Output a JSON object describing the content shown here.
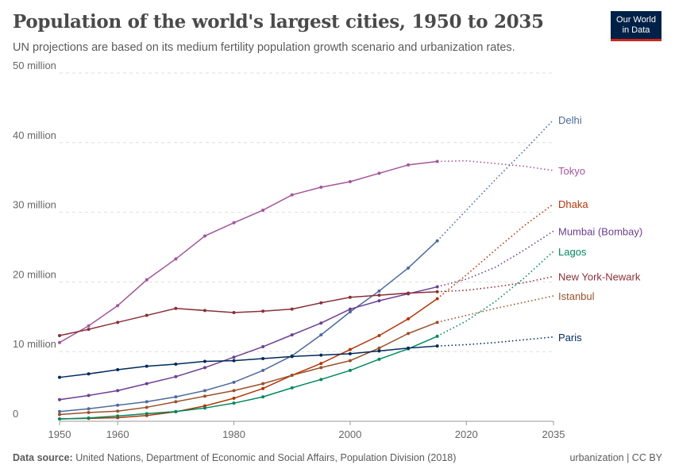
{
  "title": "Population of the world's largest cities, 1950 to 2035",
  "subtitle": "UN projections are based on its medium fertility population growth scenario and urbanization rates.",
  "logo": {
    "line1": "Our World",
    "line2": "in Data"
  },
  "footer": {
    "source_label": "Data source:",
    "source": "United Nations, Department of Economic and Social Affairs, Population Division (2018)",
    "right": "urbanization | CC BY"
  },
  "chart_data": {
    "type": "line",
    "xlim": [
      1950,
      2035
    ],
    "ylim": [
      0,
      50
    ],
    "x_ticks": [
      1950,
      1960,
      1980,
      2000,
      2020,
      2035
    ],
    "y_ticks": [
      {
        "v": 0,
        "label": "0"
      },
      {
        "v": 10,
        "label": "10 million"
      },
      {
        "v": 20,
        "label": "20 million"
      },
      {
        "v": 30,
        "label": "30 million"
      },
      {
        "v": 40,
        "label": "40 million"
      },
      {
        "v": 50,
        "label": "50 million"
      }
    ],
    "grid": "horizontal dashed",
    "legend": "labels at line ends",
    "observed_x": [
      1950,
      1955,
      1960,
      1965,
      1970,
      1975,
      1980,
      1985,
      1990,
      1995,
      2000,
      2005,
      2010,
      2015
    ],
    "projected_x": [
      2015,
      2020,
      2025,
      2030,
      2035
    ],
    "series": [
      {
        "name": "Delhi",
        "color": "#4C6A9C",
        "observed": [
          1.4,
          1.8,
          2.3,
          2.8,
          3.5,
          4.4,
          5.6,
          7.3,
          9.4,
          12.4,
          15.7,
          18.7,
          22.0,
          25.9
        ],
        "projected": [
          25.9,
          30.3,
          34.7,
          38.9,
          43.3
        ]
      },
      {
        "name": "Tokyo",
        "color": "#A2559C",
        "observed": [
          11.3,
          13.7,
          16.6,
          20.3,
          23.3,
          26.6,
          28.5,
          30.3,
          32.5,
          33.6,
          34.4,
          35.6,
          36.8,
          37.3
        ],
        "projected": [
          37.3,
          37.4,
          37.0,
          36.6,
          36.0
        ]
      },
      {
        "name": "Dhaka",
        "color": "#B13507",
        "observed": [
          0.34,
          0.41,
          0.51,
          0.82,
          1.37,
          2.2,
          3.3,
          4.7,
          6.6,
          8.3,
          10.3,
          12.3,
          14.7,
          17.6
        ],
        "projected": [
          17.6,
          21.0,
          24.6,
          28.1,
          31.2
        ]
      },
      {
        "name": "Mumbai (Bombay)",
        "color": "#6D3E91",
        "observed": [
          3.1,
          3.7,
          4.4,
          5.4,
          6.4,
          7.7,
          9.2,
          10.7,
          12.4,
          14.1,
          16.1,
          17.3,
          18.3,
          19.3
        ],
        "projected": [
          19.3,
          20.4,
          22.1,
          24.6,
          27.3
        ]
      },
      {
        "name": "Lagos",
        "color": "#00875E",
        "observed": [
          0.33,
          0.47,
          0.76,
          1.1,
          1.4,
          1.9,
          2.6,
          3.5,
          4.8,
          6.0,
          7.3,
          8.9,
          10.4,
          12.2
        ],
        "projected": [
          12.2,
          14.4,
          17.2,
          20.6,
          24.4
        ]
      },
      {
        "name": "New York-Newark",
        "color": "#883039",
        "observed": [
          12.3,
          13.2,
          14.2,
          15.2,
          16.2,
          15.9,
          15.6,
          15.8,
          16.1,
          17.0,
          17.8,
          18.1,
          18.4,
          18.6
        ],
        "projected": [
          18.6,
          18.8,
          19.3,
          19.9,
          20.8
        ]
      },
      {
        "name": "Istanbul",
        "color": "#9A5129",
        "observed": [
          0.97,
          1.25,
          1.45,
          2.0,
          2.8,
          3.6,
          4.4,
          5.4,
          6.6,
          7.7,
          8.7,
          10.5,
          12.6,
          14.2
        ],
        "projected": [
          14.2,
          15.2,
          16.2,
          17.1,
          18.0
        ]
      },
      {
        "name": "Paris",
        "color": "#00295B",
        "observed": [
          6.3,
          6.8,
          7.4,
          7.9,
          8.2,
          8.6,
          8.7,
          9.0,
          9.3,
          9.5,
          9.7,
          10.1,
          10.5,
          10.8
        ],
        "projected": [
          10.8,
          11.0,
          11.3,
          11.7,
          12.1
        ]
      }
    ]
  }
}
